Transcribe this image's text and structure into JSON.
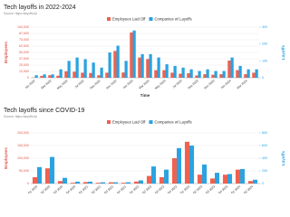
{
  "chart_data": [
    {
      "type": "bar",
      "title": "Tech layoffs in 2022-2024",
      "subtitle": "Source: https://layoffs.fyi",
      "x_label": "Time",
      "y_label": "Employees",
      "y2_label": "Layoffs",
      "grid": true,
      "legend": "top",
      "categories": [
        "Jan 2022",
        null,
        "Mar 2022",
        null,
        "May 2022",
        null,
        "Jul 2022",
        null,
        "Sep 2022",
        null,
        "Nov 2022",
        null,
        "Jan 2023",
        null,
        "Mar 2023",
        null,
        "May 2023",
        null,
        "Jul 2023",
        null,
        "Sep 2023",
        null,
        "Nov 2023",
        null,
        "Jan 2024",
        null,
        "Mar 2024",
        null
      ],
      "series": [
        {
          "name": "Employees Laid Off",
          "color": "#f0614f",
          "values": [
            500,
            3700,
            5000,
            4000,
            12900,
            12000,
            10000,
            9400,
            5000,
            10000,
            53000,
            10400,
            89500,
            40000,
            37000,
            15000,
            15000,
            10000,
            8000,
            9000,
            4500,
            7000,
            6000,
            7000,
            34000,
            15000,
            7000,
            10000
          ]
        },
        {
          "name": "Companies w/ Layoffs",
          "color": "#2aa3e0",
          "axis": "y2",
          "values": [
            15,
            20,
            20,
            50,
            100,
            120,
            110,
            90,
            60,
            150,
            190,
            100,
            280,
            140,
            140,
            120,
            80,
            70,
            60,
            50,
            40,
            50,
            40,
            40,
            120,
            70,
            50,
            50
          ]
        }
      ],
      "ylim": [
        0,
        100000
      ],
      "yticks": [
        0,
        {
          "value": 12500,
          "label": "12,500"
        },
        {
          "value": 25000,
          "label": "25,000"
        },
        {
          "value": 37500,
          "label": "37,500"
        },
        {
          "value": 50000,
          "label": "50,000"
        },
        {
          "value": 62500,
          "label": "62,500"
        },
        {
          "value": 75000,
          "label": "75,000"
        },
        {
          "value": 87500,
          "label": "87,500"
        },
        {
          "value": 100000,
          "label": "100,000"
        }
      ],
      "y2lim": [
        0,
        300
      ],
      "y2ticks": [
        0,
        100,
        200,
        300
      ]
    },
    {
      "type": "bar",
      "title": "Tech layoffs since COVID-19",
      "subtitle": "Source: https://layoffs.fyi",
      "y_label": "Employees",
      "y2_label": "Layoffs",
      "grid": true,
      "legend": "top",
      "categories": [
        "Q1 2020",
        "Q2 2020",
        "Q3 2020",
        "Q4 2020",
        "Q1 2021",
        "Q2 2021",
        "Q3 2021",
        "Q4 2021",
        "Q1 2022",
        "Q2 2022",
        "Q3 2022",
        "Q4 2022",
        "Q1 2023",
        "Q2 2023",
        "Q3 2023",
        "Q4 2023",
        "Q1 2024",
        "Q2 2024"
      ],
      "series": [
        {
          "name": "Employees Laid Off",
          "color": "#f0614f",
          "values": [
            25000,
            60000,
            10000,
            3000,
            6000,
            3000,
            5000,
            3000,
            8000,
            30000,
            25000,
            100000,
            165000,
            35000,
            20000,
            35000,
            55000,
            10000
          ]
        },
        {
          "name": "Companies w/ Layoffs",
          "color": "#2aa3e0",
          "axis": "y2",
          "values": [
            260,
            420,
            90,
            30,
            30,
            20,
            20,
            20,
            50,
            270,
            220,
            560,
            600,
            300,
            170,
            150,
            230,
            60
          ]
        }
      ],
      "ylim": [
        0,
        200000
      ],
      "yticks": [
        0,
        {
          "value": 50000,
          "label": "50,000"
        },
        {
          "value": 100000,
          "label": "100,000"
        },
        {
          "value": 150000,
          "label": "150,000"
        },
        {
          "value": 200000,
          "label": "200,000"
        }
      ],
      "y2lim": [
        0,
        800
      ],
      "y2ticks": [
        0,
        200,
        400,
        600,
        800
      ]
    }
  ]
}
